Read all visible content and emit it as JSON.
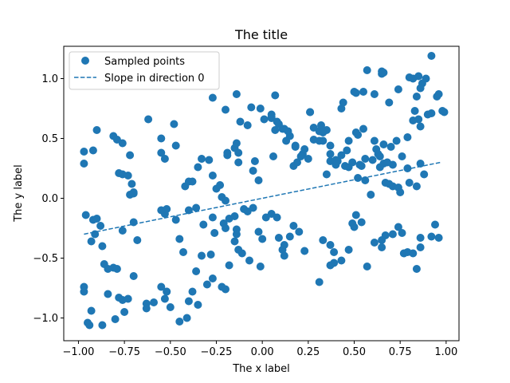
{
  "chart_data": {
    "type": "scatter",
    "title": "The title",
    "xlabel": "The x label",
    "ylabel": "The y label",
    "xlim": [
      -1.08,
      1.07
    ],
    "ylim": [
      -1.19,
      1.27
    ],
    "xticks": [
      -1.0,
      -0.75,
      -0.5,
      -0.25,
      0.0,
      0.25,
      0.5,
      0.75,
      1.0
    ],
    "xtick_labels": [
      "−1.00",
      "−0.75",
      "−0.50",
      "−0.25",
      "0.00",
      "0.25",
      "0.50",
      "0.75",
      "1.00"
    ],
    "yticks": [
      -1.0,
      -0.5,
      0.0,
      0.5,
      1.0
    ],
    "ytick_labels": [
      "−1.0",
      "−0.5",
      "0.0",
      "0.5",
      "1.0"
    ],
    "grid": false,
    "legend": {
      "position": "top-left",
      "entries": [
        "Sampled points",
        "Slope in direction 0"
      ]
    },
    "series": [
      {
        "name": "Sampled points",
        "type": "scatter",
        "color": "#1f77b4",
        "points": [
          [
            -0.97,
            0.39
          ],
          [
            -0.97,
            0.29
          ],
          [
            -0.92,
            0.4
          ],
          [
            -0.9,
            0.57
          ],
          [
            -0.96,
            -0.14
          ],
          [
            -0.92,
            -0.18
          ],
          [
            -0.9,
            -0.17
          ],
          [
            -0.88,
            -0.23
          ],
          [
            -0.93,
            -0.36
          ],
          [
            -0.91,
            -0.3
          ],
          [
            -0.87,
            -0.4
          ],
          [
            -0.86,
            -0.55
          ],
          [
            -0.84,
            -0.59
          ],
          [
            -0.81,
            -0.58
          ],
          [
            -0.97,
            -0.74
          ],
          [
            -0.97,
            -0.78
          ],
          [
            -0.95,
            -1.04
          ],
          [
            -0.94,
            -1.06
          ],
          [
            -0.93,
            -0.94
          ],
          [
            -0.87,
            -1.06
          ],
          [
            -0.84,
            -0.8
          ],
          [
            -0.8,
            -1.01
          ],
          [
            -0.78,
            -0.83
          ],
          [
            -0.76,
            -0.85
          ],
          [
            -0.75,
            -0.95
          ],
          [
            -0.73,
            -0.84
          ],
          [
            -0.81,
            0.52
          ],
          [
            -0.79,
            0.49
          ],
          [
            -0.76,
            0.46
          ],
          [
            -0.72,
            0.36
          ],
          [
            -0.76,
            0.2
          ],
          [
            -0.78,
            0.21
          ],
          [
            -0.73,
            0.19
          ],
          [
            -0.71,
            0.12
          ],
          [
            -0.7,
            0.05
          ],
          [
            -0.72,
            0.03
          ],
          [
            -0.7,
            0.04
          ],
          [
            -0.7,
            -0.2
          ],
          [
            -0.76,
            -0.27
          ],
          [
            -0.68,
            -0.35
          ],
          [
            -0.7,
            -0.65
          ],
          [
            -0.79,
            -0.59
          ],
          [
            -0.63,
            -0.88
          ],
          [
            -0.63,
            -0.92
          ],
          [
            -0.59,
            -0.87
          ],
          [
            -0.53,
            -0.84
          ],
          [
            -0.55,
            -0.74
          ],
          [
            -0.52,
            -0.78
          ],
          [
            -0.5,
            -0.91
          ],
          [
            -0.52,
            -0.78
          ],
          [
            -0.45,
            -1.03
          ],
          [
            -0.41,
            -1.0
          ],
          [
            -0.4,
            -0.86
          ],
          [
            -0.38,
            -0.78
          ],
          [
            -0.35,
            -0.89
          ],
          [
            -0.3,
            -0.72
          ],
          [
            -0.36,
            -0.61
          ],
          [
            -0.27,
            -0.67
          ],
          [
            -0.33,
            -0.48
          ],
          [
            -0.28,
            -0.47
          ],
          [
            -0.2,
            -0.76
          ],
          [
            -0.22,
            -0.74
          ],
          [
            -0.18,
            -0.56
          ],
          [
            -0.13,
            -0.43
          ],
          [
            -0.11,
            -0.46
          ],
          [
            -0.15,
            -0.36
          ],
          [
            -0.14,
            -0.3
          ],
          [
            -0.14,
            -0.26
          ],
          [
            -0.07,
            -0.52
          ],
          [
            -0.01,
            -0.57
          ],
          [
            0.0,
            -0.34
          ],
          [
            -0.02,
            -0.28
          ],
          [
            0.02,
            -0.16
          ],
          [
            0.05,
            -0.13
          ],
          [
            0.08,
            -0.16
          ],
          [
            0.09,
            -0.33
          ],
          [
            0.11,
            -0.43
          ],
          [
            0.12,
            -0.39
          ],
          [
            0.12,
            -0.48
          ],
          [
            0.15,
            -0.32
          ],
          [
            0.17,
            -0.23
          ],
          [
            0.2,
            -0.28
          ],
          [
            0.23,
            -0.44
          ],
          [
            0.31,
            -0.7
          ],
          [
            0.33,
            -0.35
          ],
          [
            0.37,
            -0.39
          ],
          [
            0.39,
            -0.45
          ],
          [
            0.39,
            -0.54
          ],
          [
            0.37,
            -0.56
          ],
          [
            0.43,
            -0.52
          ],
          [
            0.47,
            -0.43
          ],
          [
            0.5,
            -0.24
          ],
          [
            0.49,
            -0.21
          ],
          [
            0.51,
            -0.14
          ],
          [
            0.54,
            -0.2
          ],
          [
            0.57,
            -0.57
          ],
          [
            0.61,
            -0.37
          ],
          [
            0.67,
            -0.31
          ],
          [
            0.65,
            -0.35
          ],
          [
            0.65,
            -0.41
          ],
          [
            0.71,
            -0.3
          ],
          [
            0.74,
            -0.24
          ],
          [
            0.76,
            -0.29
          ],
          [
            0.77,
            -0.46
          ],
          [
            0.79,
            -0.45
          ],
          [
            0.82,
            -0.46
          ],
          [
            0.84,
            -0.59
          ],
          [
            0.86,
            -0.41
          ],
          [
            0.86,
            -0.33
          ],
          [
            0.92,
            -0.32
          ],
          [
            0.94,
            -0.22
          ],
          [
            0.96,
            -0.33
          ],
          [
            -0.53,
            -0.13
          ],
          [
            -0.55,
            -0.1
          ],
          [
            -0.52,
            -0.09
          ],
          [
            -0.47,
            -0.18
          ],
          [
            -0.43,
            -0.45
          ],
          [
            -0.45,
            -0.34
          ],
          [
            -0.4,
            -0.1
          ],
          [
            -0.36,
            -0.08
          ],
          [
            -0.32,
            -0.22
          ],
          [
            -0.27,
            -0.16
          ],
          [
            -0.26,
            -0.29
          ],
          [
            -0.21,
            -0.21
          ],
          [
            -0.2,
            -0.25
          ],
          [
            -0.18,
            -0.17
          ],
          [
            -0.15,
            -0.15
          ],
          [
            -0.1,
            -0.09
          ],
          [
            -0.08,
            -0.11
          ],
          [
            -0.05,
            -0.08
          ],
          [
            -0.48,
            0.62
          ],
          [
            -0.55,
            0.38
          ],
          [
            -0.55,
            0.5
          ],
          [
            -0.53,
            0.33
          ],
          [
            -0.47,
            0.44
          ],
          [
            -0.42,
            0.1
          ],
          [
            -0.4,
            0.14
          ],
          [
            -0.38,
            0.14
          ],
          [
            -0.35,
            0.26
          ],
          [
            -0.33,
            0.33
          ],
          [
            -0.29,
            0.32
          ],
          [
            -0.27,
            0.19
          ],
          [
            -0.25,
            0.08
          ],
          [
            -0.23,
            0.11
          ],
          [
            -0.22,
            0.01
          ],
          [
            -0.2,
            -0.02
          ],
          [
            -0.19,
            0.38
          ],
          [
            -0.19,
            0.36
          ],
          [
            -0.15,
            0.42
          ],
          [
            -0.14,
            0.46
          ],
          [
            -0.13,
            0.3
          ],
          [
            -0.13,
            0.38
          ],
          [
            -0.12,
            0.64
          ],
          [
            -0.08,
            0.61
          ],
          [
            -0.06,
            0.76
          ],
          [
            -0.04,
            0.31
          ],
          [
            -0.05,
            0.23
          ],
          [
            -0.02,
            0.15
          ],
          [
            -0.01,
            0.75
          ],
          [
            0.01,
            0.66
          ],
          [
            0.05,
            0.7
          ],
          [
            0.05,
            0.67
          ],
          [
            0.05,
            0.68
          ],
          [
            0.08,
            0.64
          ],
          [
            0.11,
            0.58
          ],
          [
            0.13,
            0.48
          ],
          [
            0.15,
            0.52
          ],
          [
            0.18,
            0.44
          ],
          [
            0.18,
            0.43
          ],
          [
            0.22,
            0.37
          ],
          [
            0.25,
            0.33
          ],
          [
            0.28,
            0.59
          ],
          [
            0.31,
            0.48
          ],
          [
            0.31,
            0.56
          ],
          [
            0.33,
            0.48
          ],
          [
            0.35,
            0.2
          ],
          [
            0.37,
            0.31
          ],
          [
            0.37,
            0.37
          ],
          [
            0.4,
            0.28
          ],
          [
            0.41,
            0.31
          ],
          [
            0.45,
            0.27
          ],
          [
            0.47,
            0.26
          ],
          [
            0.49,
            0.3
          ],
          [
            0.52,
            0.17
          ],
          [
            0.54,
            0.27
          ],
          [
            0.56,
            0.15
          ],
          [
            0.59,
            0.03
          ],
          [
            0.62,
            0.41
          ],
          [
            0.63,
            0.37
          ],
          [
            0.64,
            0.35
          ],
          [
            0.66,
            0.29
          ],
          [
            0.67,
            0.13
          ],
          [
            0.69,
            0.12
          ],
          [
            0.71,
            0.1
          ],
          [
            0.74,
            0.09
          ],
          [
            0.75,
            0.05
          ],
          [
            0.8,
            0.13
          ],
          [
            0.84,
            0.1
          ],
          [
            0.86,
            0.29
          ],
          [
            0.88,
            0.2
          ],
          [
            -0.62,
            0.66
          ],
          [
            -0.27,
            0.84
          ],
          [
            -0.2,
            0.74
          ],
          [
            -0.14,
            0.87
          ],
          [
            0.07,
            0.86
          ],
          [
            0.26,
            0.72
          ],
          [
            0.26,
            0.72
          ],
          [
            0.43,
            0.75
          ],
          [
            0.44,
            0.8
          ],
          [
            0.5,
            0.89
          ],
          [
            0.51,
            0.88
          ],
          [
            0.55,
            0.89
          ],
          [
            0.57,
            1.07
          ],
          [
            0.61,
            0.87
          ],
          [
            0.65,
            1.06
          ],
          [
            0.65,
            1.04
          ],
          [
            0.66,
            1.05
          ],
          [
            0.69,
            0.8
          ],
          [
            0.74,
            0.91
          ],
          [
            0.8,
            1.01
          ],
          [
            0.82,
            1.0
          ],
          [
            0.85,
            1.02
          ],
          [
            0.87,
            0.96
          ],
          [
            0.89,
            1.0
          ],
          [
            0.92,
            1.19
          ],
          [
            0.95,
            0.85
          ],
          [
            0.96,
            0.87
          ],
          [
            0.99,
            0.72
          ],
          [
            0.92,
            0.71
          ],
          [
            0.9,
            0.7
          ],
          [
            0.83,
            0.73
          ],
          [
            0.82,
            0.65
          ],
          [
            0.85,
            0.66
          ],
          [
            0.86,
            0.6
          ],
          [
            0.79,
            0.51
          ],
          [
            0.73,
            0.48
          ],
          [
            0.7,
            0.43
          ],
          [
            0.66,
            0.45
          ],
          [
            0.61,
            0.48
          ],
          [
            0.55,
            0.58
          ],
          [
            0.52,
            0.53
          ],
          [
            0.51,
            0.55
          ],
          [
            0.47,
            0.48
          ],
          [
            0.46,
            0.4
          ],
          [
            0.43,
            0.36
          ],
          [
            0.4,
            0.32
          ],
          [
            0.37,
            0.44
          ],
          [
            0.35,
            0.57
          ],
          [
            0.33,
            0.55
          ],
          [
            0.32,
            0.61
          ],
          [
            0.28,
            0.49
          ],
          [
            0.23,
            0.41
          ],
          [
            0.21,
            0.35
          ],
          [
            0.19,
            0.3
          ],
          [
            0.17,
            0.27
          ],
          [
            0.14,
            0.56
          ],
          [
            0.12,
            0.58
          ],
          [
            0.09,
            0.62
          ],
          [
            0.07,
            0.57
          ],
          [
            0.06,
            0.35
          ],
          [
            0.84,
            0.85
          ],
          [
            0.86,
            0.92
          ],
          [
            0.79,
            0.25
          ],
          [
            0.76,
            0.35
          ],
          [
            0.71,
            0.28
          ],
          [
            0.68,
            0.3
          ],
          [
            0.64,
            0.26
          ],
          [
            0.6,
            0.32
          ],
          [
            0.56,
            0.33
          ],
          [
            0.53,
            0.28
          ],
          [
            0.98,
            0.73
          ]
        ]
      },
      {
        "name": "Slope in direction 0",
        "type": "line",
        "style": "dashed",
        "color": "#1f77b4",
        "x": [
          -0.97,
          0.97
        ],
        "y": [
          -0.3,
          0.3
        ]
      }
    ]
  }
}
